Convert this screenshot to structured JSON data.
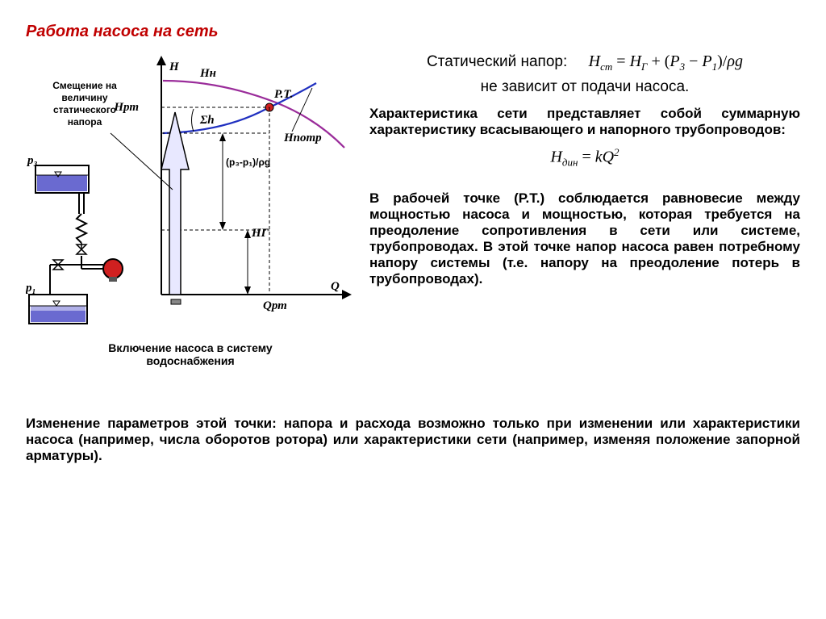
{
  "title": "Работа насоса на сеть",
  "annotation_shift": "Смещение на\nвеличину\nстатического\nнапора",
  "caption": "Включение насоса в систему\nводоснабжения",
  "static_head_label": "Статический напор:",
  "formula_static_html": "H<sub>ст</sub> <span class='rm'>=</span> H<sub>Г</sub> <span class='rm'>+</span> <span class='rm'>(</span>P<sub>3</sub> <span class='rm'>−</span> P<sub>1</sub><span class='rm'>)</span><span class='rm'>/</span>ρg",
  "independent": "не зависит от подачи насоса.",
  "para1": "Характеристика сети представляет собой суммарную характеристику всасывающего и напорного трубопроводов:",
  "formula_dyn_html": "H<sub>дин</sub> <span class='rm'>=</span> kQ<sup>2</sup>",
  "para2": "В рабочей точке (Р.Т.) соблюдается равновесие между мощностью насоса и мощностью, которая требуется на преодоление сопротивления в сети или системе, трубопроводах. В этой точке напор насоса равен потребному напору системы (т.е. напору на преодоление потерь в трубопроводах).",
  "bottom": "Изменение параметров этой точки: напора и расхода возможно только при изменении или характеристики насоса (например, числа оборотов ротора) или характеристики сети (например, изменяя положение запорной арматуры).",
  "diagram": {
    "colors": {
      "bg": "#ffffff",
      "axis": "#000000",
      "water": "#6a6ad0",
      "water_light": "#b0b0e8",
      "pump_curve": "#9a2c9a",
      "loss_curve": "#2030c0",
      "rt_fill": "#d02020",
      "pump_body": "#d02020",
      "valve": "#000000",
      "arrow_body": "#e8e8ff",
      "arrow_stroke": "#000000",
      "dash": "#000000",
      "thin": "#555"
    },
    "labels": {
      "H_axis": "H",
      "Q_axis": "Q",
      "H_N": "Hн",
      "H_rt": "Hрт",
      "RT": "Р.Т.",
      "sumh": "Σh",
      "H_potr": "Hпотр",
      "dp": "(p₃-p₁)/ρg",
      "H_G": "HГ",
      "Q_rt": "Qрт",
      "p3": "p₃",
      "p1": "p₁"
    }
  }
}
